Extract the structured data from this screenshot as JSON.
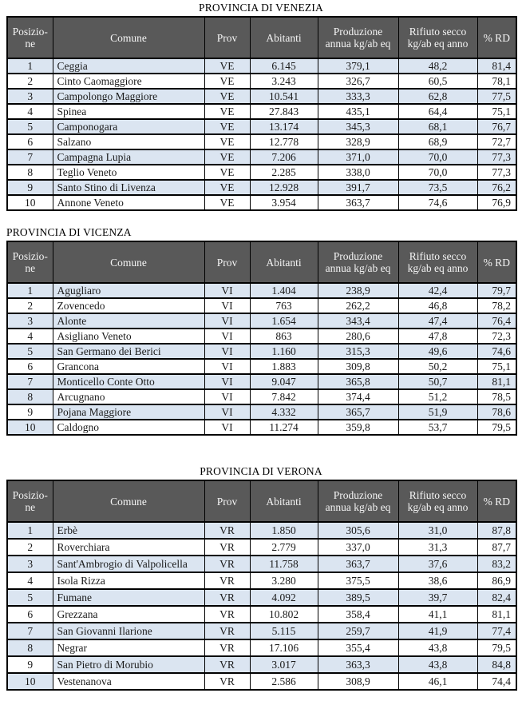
{
  "colors": {
    "header_bg": "#595959",
    "header_text": "#f5f5f5",
    "row_shade_blue": "#dbe5f1",
    "border": "#000000",
    "text": "#1a1a1a"
  },
  "columns": [
    "Posizio-ne",
    "Comune",
    "Prov",
    "Abitanti",
    "Produzione annua kg/ab eq",
    "Rifiuto secco kg/ab eq anno",
    "% RD"
  ],
  "tables": [
    {
      "title": "PROVINCIA DI VENEZIA",
      "rows": [
        {
          "pos": "1",
          "comune": "Ceggia",
          "prov": "VE",
          "abitanti": "6.145",
          "produzione": "379,1",
          "rifiuto": "48,2",
          "rd": "81,4",
          "shade": true,
          "shade_pos": true
        },
        {
          "pos": "2",
          "comune": "Cinto Caomaggiore",
          "prov": "VE",
          "abitanti": "3.243",
          "produzione": "326,7",
          "rifiuto": "60,5",
          "rd": "78,1",
          "shade": false,
          "shade_pos": false
        },
        {
          "pos": "3",
          "comune": "Campolongo Maggiore",
          "prov": "VE",
          "abitanti": "10.541",
          "produzione": "333,3",
          "rifiuto": "62,8",
          "rd": "77,5",
          "shade": true,
          "shade_pos": true
        },
        {
          "pos": "4",
          "comune": "Spinea",
          "prov": "VE",
          "abitanti": "27.843",
          "produzione": "435,1",
          "rifiuto": "64,4",
          "rd": "75,1",
          "shade": false,
          "shade_pos": false
        },
        {
          "pos": "5",
          "comune": "Camponogara",
          "prov": "VE",
          "abitanti": "13.174",
          "produzione": "345,3",
          "rifiuto": "68,1",
          "rd": "76,7",
          "shade": true,
          "shade_pos": true
        },
        {
          "pos": "6",
          "comune": "Salzano",
          "prov": "VE",
          "abitanti": "12.778",
          "produzione": "328,9",
          "rifiuto": "68,9",
          "rd": "72,7",
          "shade": false,
          "shade_pos": false
        },
        {
          "pos": "7",
          "comune": "Campagna Lupia",
          "prov": "VE",
          "abitanti": "7.206",
          "produzione": "371,0",
          "rifiuto": "70,0",
          "rd": "77,3",
          "shade": true,
          "shade_pos": true
        },
        {
          "pos": "8",
          "comune": "Teglio Veneto",
          "prov": "VE",
          "abitanti": "2.285",
          "produzione": "338,0",
          "rifiuto": "70,0",
          "rd": "77,3",
          "shade": false,
          "shade_pos": false
        },
        {
          "pos": "9",
          "comune": "Santo Stino di Livenza",
          "prov": "VE",
          "abitanti": "12.928",
          "produzione": "391,7",
          "rifiuto": "73,5",
          "rd": "76,2",
          "shade": true,
          "shade_pos": true
        },
        {
          "pos": "10",
          "comune": "Annone Veneto",
          "prov": "VE",
          "abitanti": "3.954",
          "produzione": "363,7",
          "rifiuto": "74,6",
          "rd": "76,9",
          "shade": false,
          "shade_pos": false
        }
      ]
    },
    {
      "title": "PROVINCIA DI VICENZA",
      "rows": [
        {
          "pos": "1",
          "comune": "Agugliaro",
          "prov": "VI",
          "abitanti": "1.404",
          "produzione": "238,9",
          "rifiuto": "42,4",
          "rd": "79,7",
          "shade": true,
          "shade_pos": true
        },
        {
          "pos": "2",
          "comune": "Zovencedo",
          "prov": "VI",
          "abitanti": "763",
          "produzione": "262,2",
          "rifiuto": "46,8",
          "rd": "78,2",
          "shade": false,
          "shade_pos": false
        },
        {
          "pos": "3",
          "comune": "Alonte",
          "prov": "VI",
          "abitanti": "1.654",
          "produzione": "343,4",
          "rifiuto": "47,4",
          "rd": "76,4",
          "shade": true,
          "shade_pos": true
        },
        {
          "pos": "4",
          "comune": "Asigliano Veneto",
          "prov": "VI",
          "abitanti": "863",
          "produzione": "280,6",
          "rifiuto": "47,8",
          "rd": "72,3",
          "shade": false,
          "shade_pos": false
        },
        {
          "pos": "5",
          "comune": "San Germano dei Berici",
          "prov": "VI",
          "abitanti": "1.160",
          "produzione": "315,3",
          "rifiuto": "49,6",
          "rd": "74,6",
          "shade": true,
          "shade_pos": true
        },
        {
          "pos": "6",
          "comune": "Grancona",
          "prov": "VI",
          "abitanti": "1.883",
          "produzione": "309,8",
          "rifiuto": "50,2",
          "rd": "75,1",
          "shade": false,
          "shade_pos": false
        },
        {
          "pos": "7",
          "comune": "Monticello Conte Otto",
          "prov": "VI",
          "abitanti": "9.047",
          "produzione": "365,8",
          "rifiuto": "50,7",
          "rd": "81,1",
          "shade": true,
          "shade_pos": true
        },
        {
          "pos": "8",
          "comune": "Arcugnano",
          "prov": "VI",
          "abitanti": "7.842",
          "produzione": "374,4",
          "rifiuto": "51,2",
          "rd": "78,5",
          "shade": false,
          "shade_pos": true
        },
        {
          "pos": "9",
          "comune": "Pojana Maggiore",
          "prov": "VI",
          "abitanti": "4.332",
          "produzione": "365,7",
          "rifiuto": "51,9",
          "rd": "78,6",
          "shade": true,
          "shade_pos": false
        },
        {
          "pos": "10",
          "comune": "Caldogno",
          "prov": "VI",
          "abitanti": "11.274",
          "produzione": "359,8",
          "rifiuto": "53,7",
          "rd": "79,5",
          "shade": false,
          "shade_pos": true
        }
      ]
    },
    {
      "title": "PROVINCIA DI VERONA",
      "rows": [
        {
          "pos": "1",
          "comune": "Erbè",
          "prov": "VR",
          "abitanti": "1.850",
          "produzione": "305,6",
          "rifiuto": "31,0",
          "rd": "87,8",
          "shade": true,
          "shade_pos": true
        },
        {
          "pos": "2",
          "comune": "Roverchiara",
          "prov": "VR",
          "abitanti": "2.779",
          "produzione": "337,0",
          "rifiuto": "31,3",
          "rd": "87,7",
          "shade": false,
          "shade_pos": false
        },
        {
          "pos": "3",
          "comune": "Sant'Ambrogio di Valpoli­cella",
          "prov": "VR",
          "abitanti": "11.758",
          "produzione": "363,7",
          "rifiuto": "37,6",
          "rd": "83,2",
          "shade": true,
          "shade_pos": true
        },
        {
          "pos": "4",
          "comune": "Isola Rizza",
          "prov": "VR",
          "abitanti": "3.280",
          "produzione": "375,5",
          "rifiuto": "38,6",
          "rd": "86,9",
          "shade": false,
          "shade_pos": false
        },
        {
          "pos": "5",
          "comune": "Fumane",
          "prov": "VR",
          "abitanti": "4.092",
          "produzione": "389,5",
          "rifiuto": "39,7",
          "rd": "82,4",
          "shade": true,
          "shade_pos": true
        },
        {
          "pos": "6",
          "comune": "Grezzana",
          "prov": "VR",
          "abitanti": "10.802",
          "produzione": "358,4",
          "rifiuto": "41,1",
          "rd": "81,1",
          "shade": false,
          "shade_pos": false
        },
        {
          "pos": "7",
          "comune": "San Giovanni Ilarione",
          "prov": "VR",
          "abitanti": "5.115",
          "produzione": "259,7",
          "rifiuto": "41,9",
          "rd": "77,4",
          "shade": true,
          "shade_pos": true
        },
        {
          "pos": "8",
          "comune": "Negrar",
          "prov": "VR",
          "abitanti": "17.106",
          "produzione": "355,4",
          "rifiuto": "43,8",
          "rd": "79,5",
          "shade": false,
          "shade_pos": true
        },
        {
          "pos": "9",
          "comune": "San Pietro di Morubio",
          "prov": "VR",
          "abitanti": "3.017",
          "produzione": "363,3",
          "rifiuto": "43,8",
          "rd": "84,8",
          "shade": true,
          "shade_pos": false
        },
        {
          "pos": "10",
          "comune": "Vestenanova",
          "prov": "VR",
          "abitanti": "2.586",
          "produzione": "308,9",
          "rifiuto": "46,1",
          "rd": "74,4",
          "shade": false,
          "shade_pos": true
        }
      ]
    }
  ]
}
